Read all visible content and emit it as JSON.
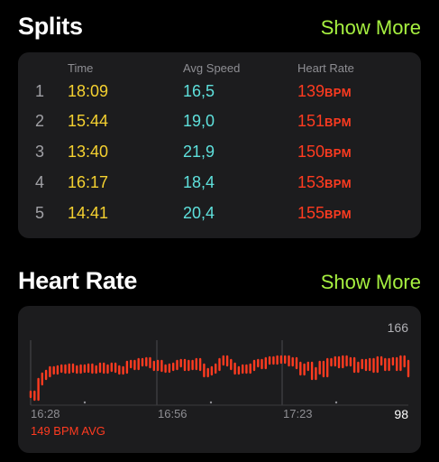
{
  "splits": {
    "title": "Splits",
    "show_more": "Show More",
    "columns": {
      "time": "Time",
      "avg_speed": "Avg Speed",
      "heart_rate": "Heart Rate"
    },
    "rows": [
      {
        "index": "1",
        "time": "18:09",
        "speed": "16,5",
        "hr": "139",
        "unit": "BPM"
      },
      {
        "index": "2",
        "time": "15:44",
        "speed": "19,0",
        "hr": "151",
        "unit": "BPM"
      },
      {
        "index": "3",
        "time": "13:40",
        "speed": "21,9",
        "hr": "150",
        "unit": "BPM"
      },
      {
        "index": "4",
        "time": "16:17",
        "speed": "18,4",
        "hr": "153",
        "unit": "BPM"
      },
      {
        "index": "5",
        "time": "14:41",
        "speed": "20,4",
        "hr": "155",
        "unit": "BPM"
      }
    ]
  },
  "heart_rate": {
    "title": "Heart Rate",
    "show_more": "Show More",
    "max_label": "166",
    "min_label": "98",
    "avg_label": "149 BPM AVG",
    "x_labels": [
      "16:28",
      "16:56",
      "17:23"
    ]
  },
  "colors": {
    "accent_green": "#a6f040",
    "time_yellow": "#f5d130",
    "speed_cyan": "#5ee0dc",
    "hr_red": "#ff3b20"
  },
  "chart_data": {
    "type": "line",
    "title": "",
    "xlabel": "",
    "ylabel": "",
    "ylim": [
      98,
      166
    ],
    "x_tick_labels": [
      "16:28",
      "16:56",
      "17:23"
    ],
    "series": [
      {
        "values": [
          110,
          107,
          124,
          130,
          133,
          137,
          136,
          138,
          139,
          137,
          140,
          138,
          137,
          139,
          138,
          140,
          137,
          138,
          141,
          137,
          139,
          141,
          138,
          136,
          137,
          143,
          144,
          141,
          146,
          145,
          147,
          143,
          140,
          144,
          139,
          138,
          140,
          141,
          144,
          145,
          140,
          144,
          141,
          146,
          140,
          133,
          135,
          137,
          140,
          146,
          149,
          145,
          141,
          136,
          137,
          139,
          137,
          140,
          144,
          145,
          142,
          147,
          148,
          147,
          149,
          148,
          149,
          145,
          147,
          142,
          135,
          140,
          142,
          130,
          136,
          143,
          133,
          146,
          145,
          148,
          143,
          149,
          145,
          147,
          138,
          142,
          145,
          140,
          146,
          138,
          148,
          146,
          140,
          146,
          147,
          140,
          149,
          144,
          133
        ]
      }
    ]
  }
}
